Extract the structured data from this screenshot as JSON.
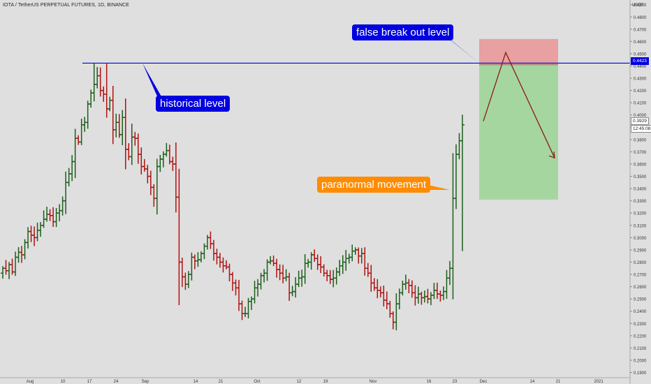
{
  "header": "IOTA / TetherUS PERPETUAL FUTURES, 1D, BINANCE",
  "currency_label": "USDT",
  "annotations": {
    "false_breakout": "false break out level",
    "historical": "historical level",
    "paranormal": "paranormal movement"
  },
  "price_tags": {
    "level": "0.4423",
    "last": "0.3929",
    "countdown": "12:45:08"
  },
  "colors": {
    "up": "#1a5e1a",
    "down": "#b01010",
    "level_line": "#0000e0",
    "callout_blue": "#0000e0",
    "callout_orange": "#ff8c00",
    "stop_zone": "#e8a0a0",
    "target_zone": "#a6d6a0",
    "projection_arrow": "#8b1a1a"
  },
  "chart_data": {
    "type": "ohlc",
    "ylim": [
      0.19,
      0.5
    ],
    "y_ticks": [
      0.19,
      0.2,
      0.21,
      0.22,
      0.23,
      0.24,
      0.25,
      0.26,
      0.27,
      0.28,
      0.29,
      0.3,
      0.31,
      0.32,
      0.33,
      0.34,
      0.35,
      0.36,
      0.37,
      0.38,
      0.39,
      0.4,
      0.41,
      0.42,
      0.43,
      0.44,
      0.45,
      0.46,
      0.47,
      0.48,
      0.49
    ],
    "x_ticks": [
      "Aug",
      "10",
      "17",
      "24",
      "Sep",
      "14",
      "21",
      "Oct",
      "12",
      "19",
      "Nov",
      "16",
      "23",
      "Dec",
      "14",
      "21",
      "2021"
    ],
    "level": 0.4423,
    "last_price": 0.3929,
    "trade_zone": {
      "stop_top": 0.462,
      "entry": 0.441,
      "target_bottom": 0.331
    },
    "projection": [
      [
        0.395
      ],
      [
        0.451
      ],
      [
        0.365
      ]
    ],
    "closes": [
      0.275,
      0.273,
      0.278,
      0.272,
      0.284,
      0.288,
      0.286,
      0.296,
      0.305,
      0.302,
      0.3,
      0.306,
      0.31,
      0.315,
      0.319,
      0.318,
      0.313,
      0.32,
      0.322,
      0.33,
      0.345,
      0.352,
      0.362,
      0.381,
      0.378,
      0.392,
      0.394,
      0.409,
      0.418,
      0.425,
      0.432,
      0.42,
      0.417,
      0.405,
      0.412,
      0.388,
      0.394,
      0.384,
      0.398,
      0.372,
      0.366,
      0.382,
      0.381,
      0.368,
      0.358,
      0.356,
      0.35,
      0.341,
      0.332,
      0.358,
      0.364,
      0.368,
      0.371,
      0.362,
      0.36,
      0.333,
      0.28,
      0.268,
      0.262,
      0.27,
      0.284,
      0.281,
      0.282,
      0.287,
      0.293,
      0.3,
      0.295,
      0.287,
      0.284,
      0.28,
      0.277,
      0.276,
      0.27,
      0.263,
      0.259,
      0.246,
      0.238,
      0.238,
      0.248,
      0.25,
      0.259,
      0.262,
      0.269,
      0.271,
      0.28,
      0.281,
      0.279,
      0.274,
      0.271,
      0.267,
      0.268,
      0.255,
      0.256,
      0.262,
      0.267,
      0.268,
      0.279,
      0.28,
      0.286,
      0.283,
      0.278,
      0.276,
      0.271,
      0.269,
      0.266,
      0.267,
      0.272,
      0.277,
      0.28,
      0.283,
      0.284,
      0.289,
      0.29,
      0.285,
      0.287,
      0.275,
      0.271,
      0.263,
      0.259,
      0.257,
      0.255,
      0.249,
      0.246,
      0.238,
      0.231,
      0.246,
      0.255,
      0.262,
      0.263,
      0.261,
      0.255,
      0.251,
      0.254,
      0.251,
      0.252,
      0.25,
      0.253,
      0.257,
      0.254,
      0.253,
      0.256,
      0.267,
      0.275,
      0.332,
      0.368,
      0.379,
      0.392
    ]
  }
}
